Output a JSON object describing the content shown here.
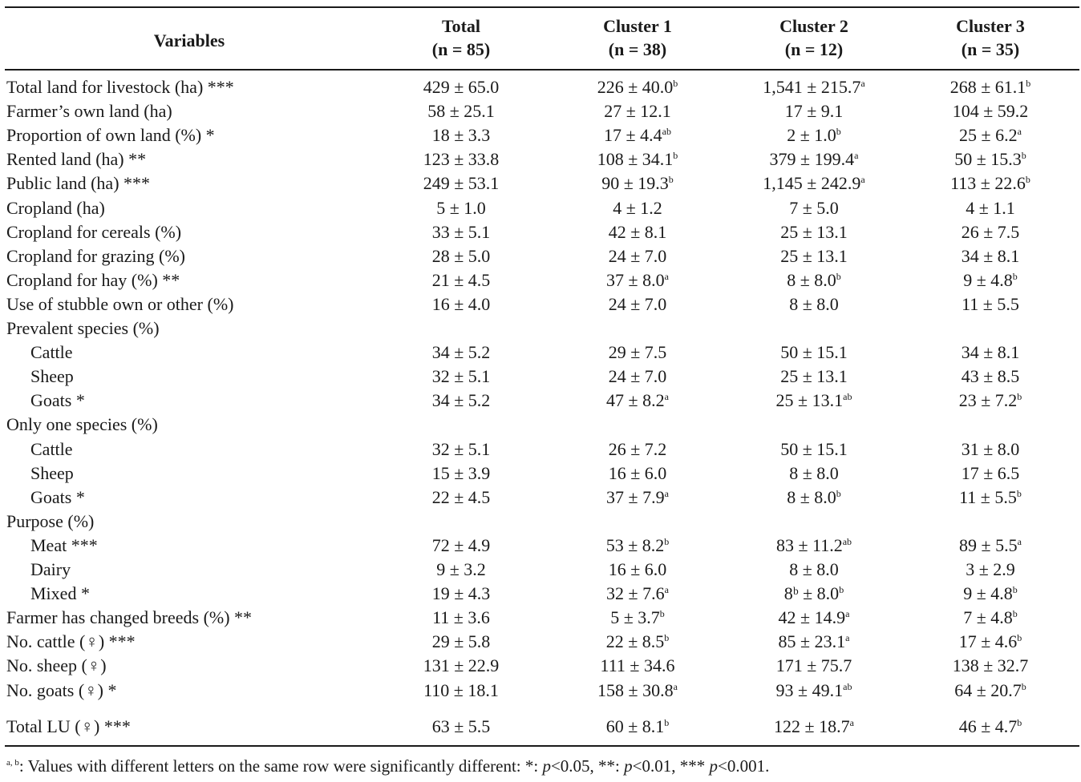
{
  "header": {
    "variables": "Variables",
    "total": [
      "Total",
      "(n = 85)"
    ],
    "cluster1": [
      "Cluster 1",
      "(n = 38)"
    ],
    "cluster2": [
      "Cluster 2",
      "(n = 12)"
    ],
    "cluster3": [
      "Cluster 3",
      "(n = 35)"
    ]
  },
  "rows": [
    {
      "label": "Total land for livestock (ha) ***",
      "cells": [
        [
          "429 ± 65.0",
          ""
        ],
        [
          "226 ± 40.0",
          "b"
        ],
        [
          "1,541 ± 215.7",
          "a"
        ],
        [
          "268 ± 61.1",
          "b"
        ]
      ]
    },
    {
      "label": "Farmer’s own land (ha)",
      "cells": [
        [
          "58 ± 25.1",
          ""
        ],
        [
          "27 ± 12.1",
          ""
        ],
        [
          "17 ± 9.1",
          ""
        ],
        [
          "104 ± 59.2",
          ""
        ]
      ]
    },
    {
      "label": "Proportion of own land (%) *",
      "cells": [
        [
          "18 ± 3.3",
          ""
        ],
        [
          "17 ± 4.4",
          "ab"
        ],
        [
          "2 ± 1.0",
          "b"
        ],
        [
          "25 ± 6.2",
          "a"
        ]
      ]
    },
    {
      "label": "Rented land (ha) **",
      "cells": [
        [
          "123 ± 33.8",
          ""
        ],
        [
          "108 ± 34.1",
          "b"
        ],
        [
          "379 ± 199.4",
          "a"
        ],
        [
          "50 ± 15.3",
          "b"
        ]
      ]
    },
    {
      "label": "Public land (ha) ***",
      "cells": [
        [
          "249 ± 53.1",
          ""
        ],
        [
          "90 ± 19.3",
          "b"
        ],
        [
          "1,145 ± 242.9",
          "a"
        ],
        [
          "113 ± 22.6",
          "b"
        ]
      ]
    },
    {
      "label": "Cropland (ha)",
      "cells": [
        [
          "5 ± 1.0",
          ""
        ],
        [
          "4 ± 1.2",
          ""
        ],
        [
          "7 ± 5.0",
          ""
        ],
        [
          "4 ± 1.1",
          ""
        ]
      ]
    },
    {
      "label": "Cropland for cereals (%)",
      "cells": [
        [
          "33 ± 5.1",
          ""
        ],
        [
          "42 ± 8.1",
          ""
        ],
        [
          "25 ± 13.1",
          ""
        ],
        [
          "26 ± 7.5",
          ""
        ]
      ]
    },
    {
      "label": "Cropland for grazing (%)",
      "cells": [
        [
          "28 ± 5.0",
          ""
        ],
        [
          "24 ± 7.0",
          ""
        ],
        [
          "25 ± 13.1",
          ""
        ],
        [
          "34 ± 8.1",
          ""
        ]
      ]
    },
    {
      "label": "Cropland for hay (%) **",
      "cells": [
        [
          "21 ± 4.5",
          ""
        ],
        [
          "37 ± 8.0",
          "a"
        ],
        [
          "8 ± 8.0",
          "b"
        ],
        [
          "9 ± 4.8",
          "b"
        ]
      ]
    },
    {
      "label": "Use of stubble own or other (%)",
      "cells": [
        [
          "16 ± 4.0",
          ""
        ],
        [
          "24 ± 7.0",
          ""
        ],
        [
          "8 ± 8.0",
          ""
        ],
        [
          "11 ± 5.5",
          ""
        ]
      ]
    },
    {
      "label": "Prevalent species (%)",
      "cells": []
    },
    {
      "label": "Cattle",
      "indent": true,
      "cells": [
        [
          "34 ± 5.2",
          ""
        ],
        [
          "29 ± 7.5",
          ""
        ],
        [
          "50 ± 15.1",
          ""
        ],
        [
          "34 ± 8.1",
          ""
        ]
      ]
    },
    {
      "label": "Sheep",
      "indent": true,
      "cells": [
        [
          "32 ± 5.1",
          ""
        ],
        [
          "24 ± 7.0",
          ""
        ],
        [
          "25 ± 13.1",
          ""
        ],
        [
          "43 ± 8.5",
          ""
        ]
      ]
    },
    {
      "label": "Goats *",
      "indent": true,
      "cells": [
        [
          "34 ± 5.2",
          ""
        ],
        [
          "47 ± 8.2",
          "a"
        ],
        [
          "25 ± 13.1",
          "ab"
        ],
        [
          "23 ± 7.2",
          "b"
        ]
      ]
    },
    {
      "label": "Only one species (%)",
      "cells": []
    },
    {
      "label": "Cattle",
      "indent": true,
      "cells": [
        [
          "32 ± 5.1",
          ""
        ],
        [
          "26 ± 7.2",
          ""
        ],
        [
          "50 ± 15.1",
          ""
        ],
        [
          "31 ± 8.0",
          ""
        ]
      ]
    },
    {
      "label": "Sheep",
      "indent": true,
      "cells": [
        [
          "15 ± 3.9",
          ""
        ],
        [
          "16 ± 6.0",
          ""
        ],
        [
          "8 ± 8.0",
          ""
        ],
        [
          "17 ± 6.5",
          ""
        ]
      ]
    },
    {
      "label": "Goats *",
      "indent": true,
      "cells": [
        [
          "22 ± 4.5",
          ""
        ],
        [
          "37 ± 7.9",
          "a"
        ],
        [
          "8 ± 8.0",
          "b"
        ],
        [
          "11 ± 5.5",
          "b"
        ]
      ]
    },
    {
      "label": "Purpose (%)",
      "cells": []
    },
    {
      "label": "Meat ***",
      "indent": true,
      "cells": [
        [
          "72 ± 4.9",
          ""
        ],
        [
          "53 ± 8.2",
          "b"
        ],
        [
          "83 ± 11.2",
          "ab"
        ],
        [
          "89 ± 5.5",
          "a"
        ]
      ]
    },
    {
      "label": "Dairy",
      "indent": true,
      "cells": [
        [
          "9 ± 3.2",
          ""
        ],
        [
          "16 ± 6.0",
          ""
        ],
        [
          "8 ± 8.0",
          ""
        ],
        [
          "3 ± 2.9",
          ""
        ]
      ]
    },
    {
      "label": "Mixed *",
      "indent": true,
      "cells": [
        [
          "19 ± 4.3",
          ""
        ],
        [
          "32 ± 7.6",
          "a"
        ],
        [
          "8ᵇ ± 8.0",
          "b"
        ],
        [
          "9 ± 4.8",
          "b"
        ]
      ]
    },
    {
      "label": "Farmer has changed breeds (%) **",
      "cells": [
        [
          "11 ± 3.6",
          ""
        ],
        [
          "5 ± 3.7",
          "b"
        ],
        [
          "42 ± 14.9",
          "a"
        ],
        [
          "7 ± 4.8",
          "b"
        ]
      ]
    },
    {
      "label": "No. cattle (♀) ***",
      "cells": [
        [
          "29 ± 5.8",
          ""
        ],
        [
          "22 ± 8.5",
          "b"
        ],
        [
          "85 ± 23.1",
          "a"
        ],
        [
          "17 ± 4.6",
          "b"
        ]
      ]
    },
    {
      "label": "No. sheep (♀)",
      "cells": [
        [
          "131 ± 22.9",
          ""
        ],
        [
          "111 ± 34.6",
          ""
        ],
        [
          "171 ± 75.7",
          ""
        ],
        [
          "138 ± 32.7",
          ""
        ]
      ]
    },
    {
      "label": "No. goats (♀) *",
      "cells": [
        [
          "110 ± 18.1",
          ""
        ],
        [
          "158 ± 30.8",
          "a"
        ],
        [
          "93 ± 49.1",
          "ab"
        ],
        [
          "64 ± 20.7",
          "b"
        ]
      ]
    },
    {
      "label": "Total LU (♀) ***",
      "cells": [
        [
          "63 ± 5.5",
          ""
        ],
        [
          "60 ± 8.1",
          "b"
        ],
        [
          "122 ± 18.7",
          "a"
        ],
        [
          "46 ± 4.7",
          "b"
        ]
      ]
    }
  ],
  "footnote": {
    "sup": "a, b",
    "text1": ": Values with different letters on the same row were significantly different: *: ",
    "p": "p",
    "text2": "<0.05, **: ",
    "text3": "<0.01, *** ",
    "text4": "<0.001."
  }
}
